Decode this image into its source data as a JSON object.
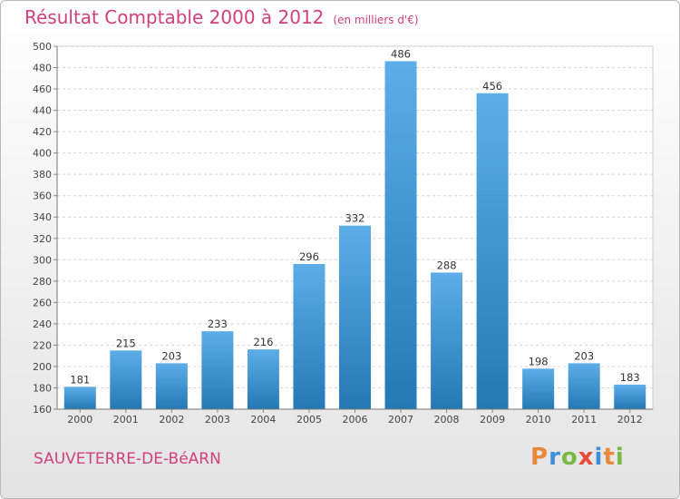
{
  "header": {
    "title": "Résultat Comptable 2000 à 2012",
    "subtitle": "(en milliers d'€)"
  },
  "footer": {
    "commune": "SAUVETERRE-DE-BéARN",
    "brand": "Proxiti"
  },
  "colors": {
    "title": "#d0407a",
    "bar_light": "#5dade8",
    "bar_dark": "#2479b4",
    "brand_letters": [
      "#e8883a",
      "#3d8fd8",
      "#78b943",
      "#e84a3a",
      "#3d8fd8",
      "#e8883a",
      "#78b943"
    ]
  },
  "chart_data": {
    "type": "bar",
    "title": "Résultat Comptable 2000 à 2012",
    "unit": "(en milliers d'€)",
    "categories": [
      "2000",
      "2001",
      "2002",
      "2003",
      "2004",
      "2005",
      "2006",
      "2007",
      "2008",
      "2009",
      "2010",
      "2011",
      "2012"
    ],
    "values": [
      181,
      215,
      203,
      233,
      216,
      296,
      332,
      486,
      288,
      456,
      198,
      203,
      183
    ],
    "ylim": [
      160,
      500
    ],
    "yticks": [
      160,
      180,
      200,
      220,
      240,
      260,
      280,
      300,
      320,
      340,
      360,
      380,
      400,
      420,
      440,
      460,
      480,
      500
    ],
    "grid": true,
    "xlabel": "",
    "ylabel": ""
  }
}
